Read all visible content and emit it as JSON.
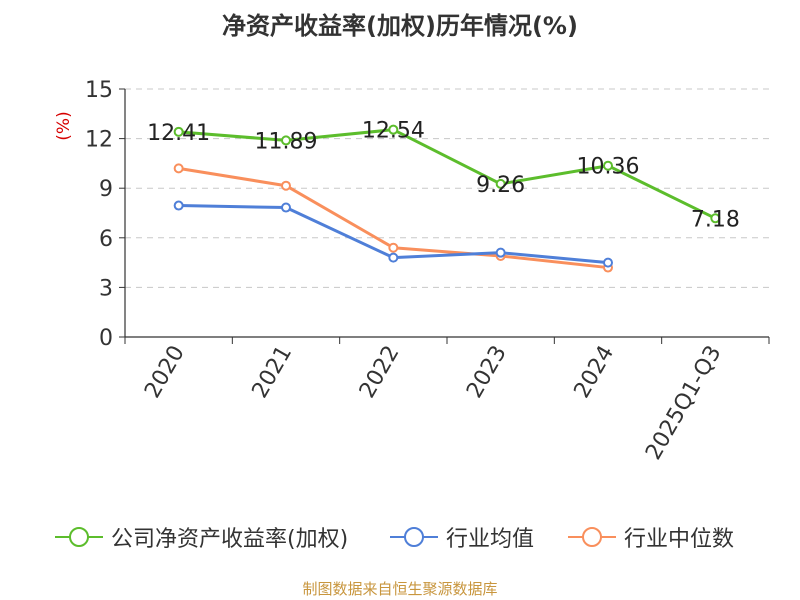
{
  "title": "净资产收益率(加权)历年情况(%)",
  "footer": "制图数据来自恒生聚源数据库",
  "colors": {
    "company": "#5cbd2c",
    "avg": "#4f7fd8",
    "median": "#f98f5c"
  },
  "chart_data": {
    "type": "line",
    "title": "净资产收益率(加权)历年情况(%)",
    "ylabel": "(%)",
    "ylim": [
      0,
      15
    ],
    "yticks": [
      "0",
      "3",
      "6",
      "9",
      "12",
      "15"
    ],
    "categories": [
      "2020",
      "2021",
      "2022",
      "2023",
      "2024",
      "2025Q1-Q3"
    ],
    "grid": true,
    "legend_position": "bottom",
    "series": [
      {
        "name": "公司净资产收益率(加权)",
        "color": "#5cbd2c",
        "values": [
          12.41,
          11.89,
          12.54,
          9.26,
          10.36,
          7.18
        ],
        "labels": [
          "12.41",
          "11.89",
          "12.54",
          "9.26",
          "10.36",
          "7.18"
        ]
      },
      {
        "name": "行业均值",
        "color": "#4f7fd8",
        "values": [
          7.95,
          7.83,
          4.8,
          5.1,
          4.5,
          null
        ]
      },
      {
        "name": "行业中位数",
        "color": "#f98f5c",
        "values": [
          10.2,
          9.15,
          5.4,
          4.9,
          4.2,
          null
        ]
      }
    ]
  }
}
